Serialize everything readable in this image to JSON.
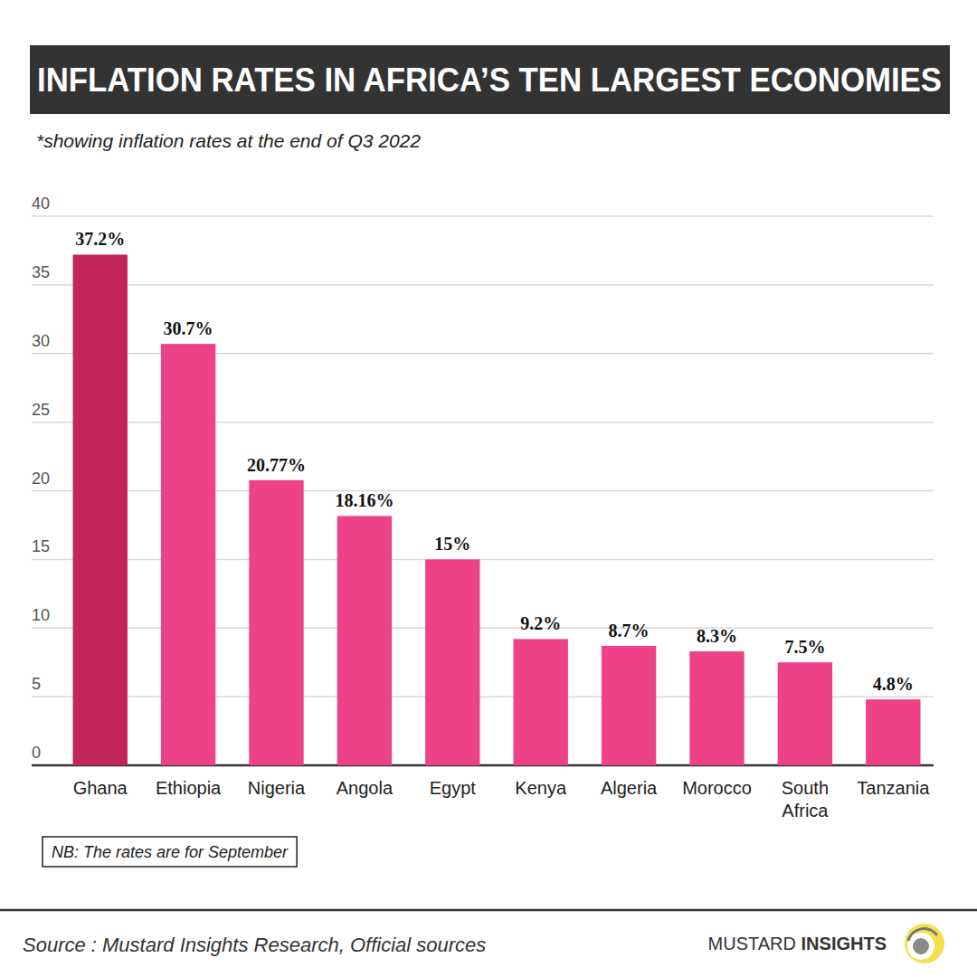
{
  "chart_data": {
    "type": "bar",
    "title": "INFLATION RATES IN AFRICA’S TEN LARGEST ECONOMIES",
    "subtitle": "*showing inflation rates at the end of Q3 2022",
    "categories": [
      "Ghana",
      "Ethiopia",
      "Nigeria",
      "Angola",
      "Egypt",
      "Kenya",
      "Algeria",
      "Morocco",
      "South Africa",
      "Tanzania"
    ],
    "values": [
      37.2,
      30.7,
      20.77,
      18.16,
      15,
      9.2,
      8.7,
      8.3,
      7.5,
      4.8
    ],
    "value_labels": [
      "37.2%",
      "30.7%",
      "20.77%",
      "18.16%",
      "15%",
      "9.2%",
      "8.7%",
      "8.3%",
      "7.5%",
      "4.8%"
    ],
    "colors": [
      "#c2255c",
      "#ee4288",
      "#ee4288",
      "#ee4288",
      "#ee4288",
      "#ee4288",
      "#ee4288",
      "#ee4288",
      "#ee4288",
      "#ee4288"
    ],
    "ylim": [
      0,
      40
    ],
    "yticks": [
      0,
      5,
      10,
      15,
      20,
      25,
      30,
      35,
      40
    ],
    "grid": true,
    "data_labels": true,
    "note": "NB: The rates are for September",
    "source": "Source : Mustard Insights Research, Official sources",
    "brand": [
      "MUSTARD",
      "INSIGHTS"
    ]
  }
}
